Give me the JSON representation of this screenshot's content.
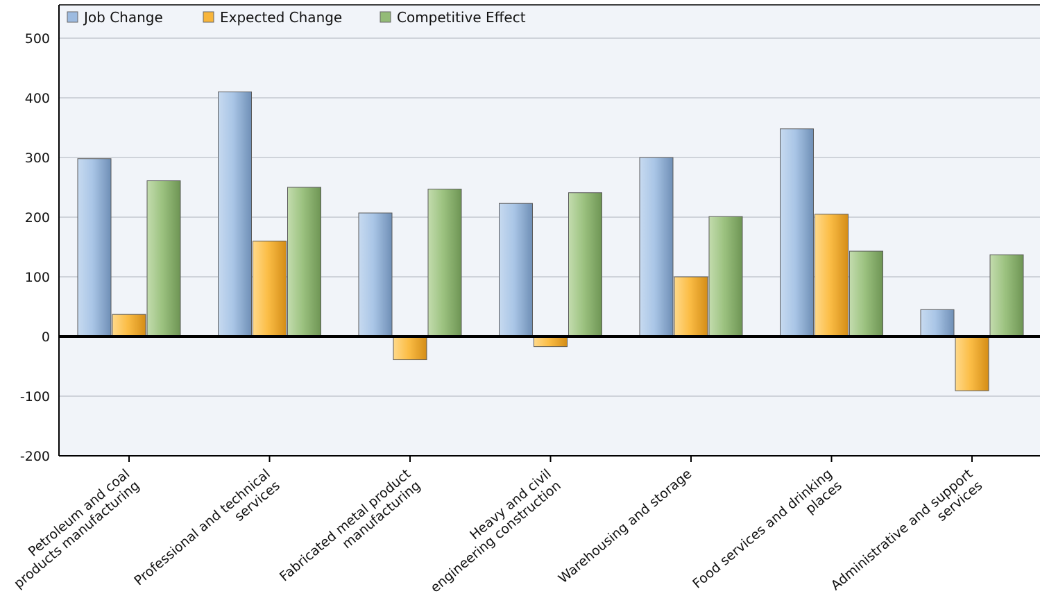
{
  "chart_data": {
    "type": "bar",
    "title": "",
    "xlabel": "",
    "ylabel": "",
    "ylim": [
      -200,
      500
    ],
    "y_ticks": [
      -200,
      -100,
      0,
      100,
      200,
      300,
      400,
      500
    ],
    "grid": true,
    "legend_position": "top-left",
    "categories": [
      "Petroleum and coal products manufacturing",
      "Professional and technical services",
      "Fabricated metal product manufacturing",
      "Heavy and civil engineering construction",
      "Warehousing and storage",
      "Food services and drinking places",
      "Administrative and support services"
    ],
    "category_label_lines": [
      [
        "Petroleum and coal",
        "products manufacturing"
      ],
      [
        "Professional and technical",
        "services"
      ],
      [
        "Fabricated metal product",
        "manufacturing"
      ],
      [
        "Heavy and civil",
        "engineering construction"
      ],
      [
        "Warehousing and storage"
      ],
      [
        "Food services and drinking",
        "places"
      ],
      [
        "Administrative and support",
        "services"
      ]
    ],
    "series": [
      {
        "name": "Job Change",
        "color": "#9dbbe0",
        "values": [
          298,
          410,
          207,
          223,
          300,
          348,
          45
        ]
      },
      {
        "name": "Expected Change",
        "color": "#f8b53a",
        "values": [
          37,
          160,
          -39,
          -17,
          100,
          205,
          -91
        ]
      },
      {
        "name": "Competitive Effect",
        "color": "#93bb77",
        "values": [
          261,
          250,
          247,
          241,
          201,
          143,
          137
        ]
      }
    ]
  }
}
